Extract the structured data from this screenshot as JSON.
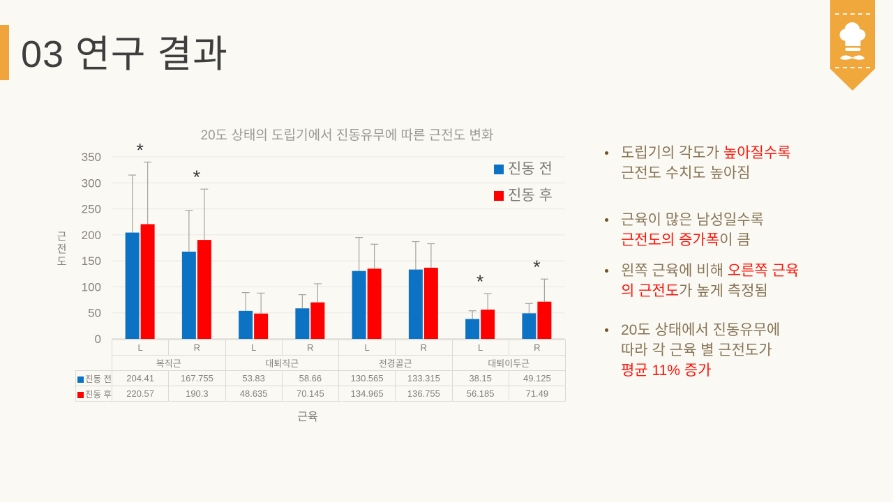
{
  "slide": {
    "title": "03 연구 결과"
  },
  "icons": {
    "ribbon": "chef-hat-and-mustache-icon"
  },
  "colors": {
    "accent_orange": "#F2A43C",
    "body_text_brown": "#867455",
    "highlight_red": "#FC150A",
    "series_before_blue": "#0C72C4",
    "series_after_red": "#FE0000"
  },
  "chart_data": {
    "type": "bar",
    "title": "20도 상태의 도립기에서 진동유무에 따른 근전도 변화",
    "xlabel": "근육",
    "ylabel": "근전도",
    "ylim": [
      0,
      350
    ],
    "yticks": [
      0,
      50,
      100,
      150,
      200,
      250,
      300,
      350
    ],
    "grid": true,
    "legend_position": "top-right-inside",
    "groups": [
      "복직근",
      "대퇴직근",
      "전경골근",
      "대퇴이두근"
    ],
    "sides": [
      "L",
      "R"
    ],
    "categories": [
      "복직근 L",
      "복직근 R",
      "대퇴직근 L",
      "대퇴직근 R",
      "전경골근 L",
      "전경골근 R",
      "대퇴이두근 L",
      "대퇴이두근 R"
    ],
    "series": [
      {
        "name": "진동 전",
        "color": "#0C72C4",
        "values": [
          204.41,
          167.755,
          53.83,
          58.66,
          130.565,
          133.315,
          38.15,
          49.125
        ],
        "error_top": [
          315,
          247,
          89,
          85,
          195,
          187,
          54,
          68
        ]
      },
      {
        "name": "진동 후",
        "color": "#FE0000",
        "values": [
          220.57,
          190.3,
          48.635,
          70.145,
          134.965,
          136.755,
          56.185,
          71.49
        ],
        "error_top": [
          340,
          288,
          88,
          106,
          182,
          183,
          87,
          115
        ]
      }
    ],
    "significance_marker": "*",
    "significant_categories": [
      0,
      1,
      6,
      7
    ]
  },
  "data_table": {
    "side_labels": [
      "L",
      "R",
      "L",
      "R",
      "L",
      "R",
      "L",
      "R"
    ],
    "group_labels": [
      "복직근",
      "대퇴직근",
      "전경골근",
      "대퇴이두근"
    ],
    "rows": [
      {
        "label": "진동 전",
        "key_color": "#0C72C4",
        "values": [
          "204.41",
          "167.755",
          "53.83",
          "58.66",
          "130.565",
          "133.315",
          "38.15",
          "49.125"
        ]
      },
      {
        "label": "진동 후",
        "key_color": "#FE0000",
        "values": [
          "220.57",
          "190.3",
          "48.635",
          "70.145",
          "134.965",
          "136.755",
          "56.185",
          "71.49"
        ]
      }
    ]
  },
  "bullets": [
    {
      "lines": [
        [
          {
            "t": "도립기의 각도가 ",
            "red": false
          },
          {
            "t": "높아질수록",
            "red": true
          }
        ],
        [
          {
            "t": "근전도 수치도 높아짐",
            "red": false
          }
        ]
      ]
    },
    {
      "lines": [
        [
          {
            "t": "근육이 많은 남성일수록",
            "red": false
          }
        ],
        [
          {
            "t": " 근전도의 증가폭",
            "red": true
          },
          {
            "t": "이 큼",
            "red": false
          }
        ]
      ]
    },
    {
      "lines": [
        [
          {
            "t": "왼쪽 근육에 비해 ",
            "red": false
          },
          {
            "t": "오른쪽 근육",
            "red": true
          }
        ],
        [
          {
            "t": "의 근전도",
            "red": true
          },
          {
            "t": "가 높게 측정됨",
            "red": false
          }
        ]
      ]
    },
    {
      "lines": [
        [
          {
            "t": "20도 상태에서 진동유무에",
            "red": false
          }
        ],
        [
          {
            "t": " 따라 각 근육 별 근전도가",
            "red": false
          }
        ],
        [
          {
            "t": "평균 11% 증가",
            "red": true
          }
        ]
      ]
    }
  ]
}
